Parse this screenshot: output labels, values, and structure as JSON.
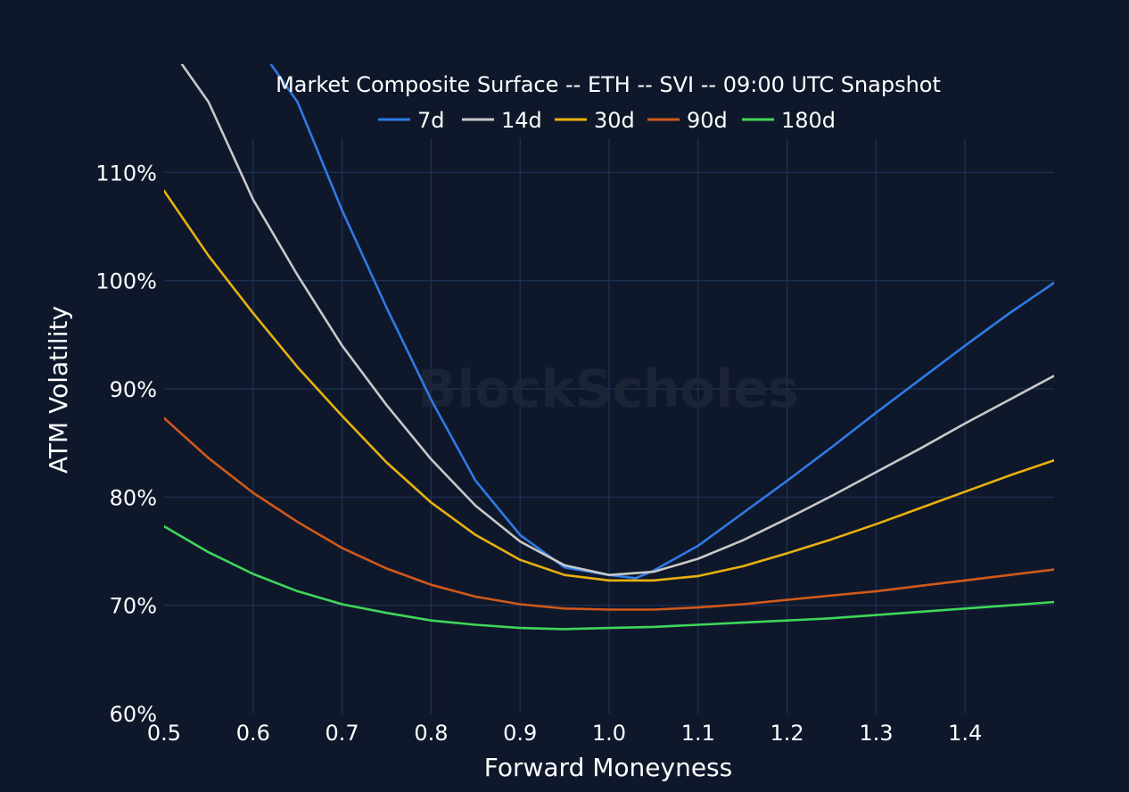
{
  "chart_data": {
    "type": "line",
    "title": "Market Composite Surface -- ETH -- SVI -- 09:00 UTC Snapshot",
    "xlabel": "Forward Moneyness",
    "ylabel": "ATM Volatility",
    "watermark": "BlockScholes",
    "xlim": [
      0.5,
      1.5
    ],
    "ylim": [
      60,
      120
    ],
    "x_ticks": [
      0.5,
      0.6,
      0.7,
      0.8,
      0.9,
      1.0,
      1.1,
      1.2,
      1.3,
      1.4
    ],
    "x_tick_labels": [
      "0.5",
      "0.6",
      "0.7",
      "0.8",
      "0.9",
      "1.0",
      "1.1",
      "1.2",
      "1.3",
      "1.4"
    ],
    "y_ticks": [
      60,
      70,
      80,
      90,
      100,
      110
    ],
    "y_tick_labels": [
      "60%",
      "70%",
      "80%",
      "90%",
      "100%",
      "110%"
    ],
    "grid": true,
    "legend_position": "top-center",
    "colors": {
      "background": "#0f182b",
      "grid": "#1f3357",
      "text": "#ffffff"
    },
    "series": [
      {
        "name": "7d",
        "color": "#2f7ae5",
        "x": [
          0.62,
          0.65,
          0.7,
          0.75,
          0.8,
          0.85,
          0.9,
          0.95,
          1.0,
          1.03,
          1.05,
          1.1,
          1.15,
          1.2,
          1.25,
          1.3,
          1.35,
          1.4,
          1.45,
          1.5
        ],
        "y": [
          120,
          116.5,
          106.5,
          97.5,
          89,
          81.5,
          76.5,
          73.5,
          72.8,
          72.5,
          73.2,
          75.5,
          78.5,
          81.5,
          84.6,
          87.8,
          90.9,
          94,
          97,
          99.8
        ]
      },
      {
        "name": "14d",
        "color": "#c8c8c8",
        "x": [
          0.52,
          0.55,
          0.6,
          0.65,
          0.7,
          0.75,
          0.8,
          0.85,
          0.9,
          0.95,
          1.0,
          1.05,
          1.1,
          1.15,
          1.2,
          1.25,
          1.3,
          1.35,
          1.4,
          1.45,
          1.5
        ],
        "y": [
          120,
          116.5,
          107.5,
          100.5,
          94,
          88.5,
          83.5,
          79.2,
          75.9,
          73.7,
          72.8,
          73.1,
          74.3,
          76,
          78,
          80.1,
          82.3,
          84.5,
          86.8,
          89,
          91.2
        ]
      },
      {
        "name": "30d",
        "color": "#e8b10e",
        "x": [
          0.5,
          0.55,
          0.6,
          0.65,
          0.7,
          0.75,
          0.8,
          0.85,
          0.9,
          0.95,
          1.0,
          1.05,
          1.1,
          1.15,
          1.2,
          1.25,
          1.3,
          1.35,
          1.4,
          1.45,
          1.5
        ],
        "y": [
          108.3,
          102.3,
          97,
          92,
          87.5,
          83.2,
          79.5,
          76.5,
          74.2,
          72.8,
          72.3,
          72.3,
          72.7,
          73.6,
          74.8,
          76.1,
          77.5,
          79,
          80.5,
          82,
          83.4
        ]
      },
      {
        "name": "90d",
        "color": "#d1591a",
        "x": [
          0.5,
          0.55,
          0.6,
          0.65,
          0.7,
          0.75,
          0.8,
          0.85,
          0.9,
          0.95,
          1.0,
          1.05,
          1.1,
          1.15,
          1.2,
          1.25,
          1.3,
          1.35,
          1.4,
          1.45,
          1.5
        ],
        "y": [
          87.3,
          83.6,
          80.4,
          77.7,
          75.3,
          73.4,
          71.9,
          70.8,
          70.1,
          69.7,
          69.6,
          69.6,
          69.8,
          70.1,
          70.5,
          70.9,
          71.3,
          71.8,
          72.3,
          72.8,
          73.3
        ]
      },
      {
        "name": "180d",
        "color": "#3fd65a",
        "x": [
          0.5,
          0.55,
          0.6,
          0.65,
          0.7,
          0.75,
          0.8,
          0.85,
          0.9,
          0.95,
          1.0,
          1.05,
          1.1,
          1.15,
          1.2,
          1.25,
          1.3,
          1.35,
          1.4,
          1.45,
          1.5
        ],
        "y": [
          77.3,
          74.9,
          72.9,
          71.3,
          70.1,
          69.3,
          68.6,
          68.2,
          67.9,
          67.8,
          67.9,
          68,
          68.2,
          68.4,
          68.6,
          68.8,
          69.1,
          69.4,
          69.7,
          70,
          70.3
        ]
      }
    ]
  }
}
